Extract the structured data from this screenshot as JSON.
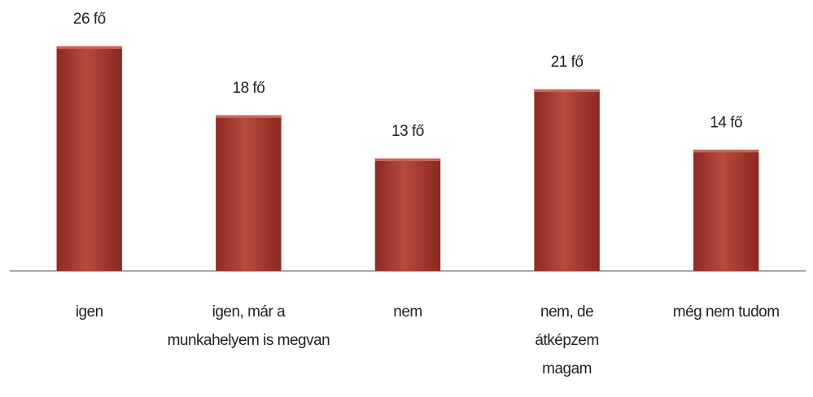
{
  "chart_data": {
    "type": "bar",
    "categories": [
      "igen",
      "igen, már a munkahelyem is megvan",
      "nem",
      "nem, de átképzem magam",
      "még nem tudom"
    ],
    "values": [
      26,
      18,
      13,
      21,
      14
    ],
    "value_labels": [
      "26 fő",
      "18 fő",
      "13 fő",
      "21 fő",
      "14 fő"
    ],
    "color": "#a63a30"
  }
}
